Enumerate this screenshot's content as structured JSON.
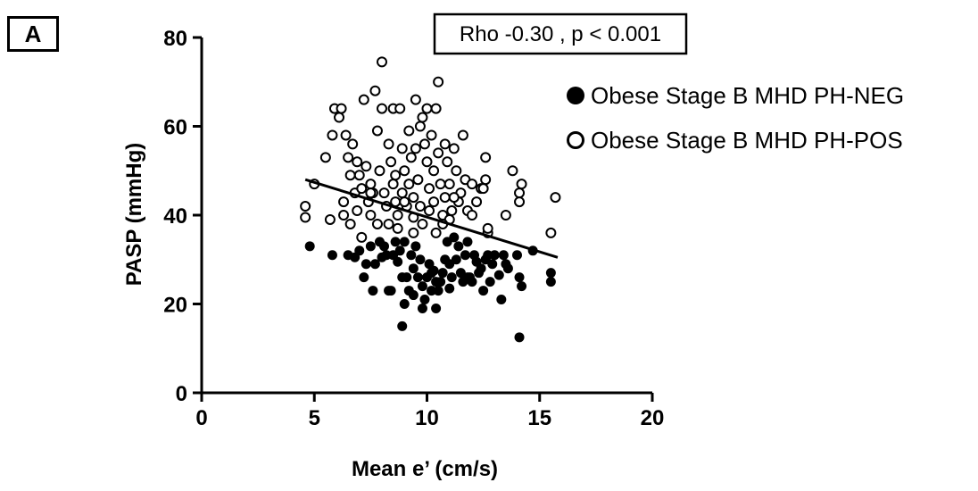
{
  "panel_label": "A",
  "chart_data": {
    "type": "scatter",
    "annotation": "Rho -0.30 , p < 0.001",
    "xlabel": "Mean e’ (cm/s)",
    "ylabel": "PASP (mmHg)",
    "xlim": [
      0,
      20
    ],
    "ylim": [
      0,
      80
    ],
    "xticks": [
      0,
      5,
      10,
      15,
      20
    ],
    "yticks": [
      0,
      20,
      40,
      60,
      80
    ],
    "legend_position": "top-right",
    "regression_line": {
      "x": [
        4.6,
        15.8
      ],
      "y": [
        48.0,
        30.5
      ]
    },
    "series": [
      {
        "name": "Obese Stage B MHD PH-NEG",
        "marker": "filled-circle",
        "color": "#000000",
        "points": [
          [
            4.8,
            33
          ],
          [
            5.8,
            31
          ],
          [
            6.5,
            31
          ],
          [
            6.8,
            30.5
          ],
          [
            7.0,
            32
          ],
          [
            7.2,
            26
          ],
          [
            7.3,
            29
          ],
          [
            7.5,
            33
          ],
          [
            7.6,
            23
          ],
          [
            7.7,
            29
          ],
          [
            7.9,
            34
          ],
          [
            8.0,
            30.5
          ],
          [
            8.1,
            33
          ],
          [
            8.2,
            31
          ],
          [
            8.3,
            23
          ],
          [
            8.4,
            23
          ],
          [
            8.5,
            31
          ],
          [
            8.6,
            34
          ],
          [
            8.7,
            29.5
          ],
          [
            8.8,
            32
          ],
          [
            8.9,
            26
          ],
          [
            8.9,
            15
          ],
          [
            9.0,
            34
          ],
          [
            9.0,
            20
          ],
          [
            9.1,
            26
          ],
          [
            9.2,
            23
          ],
          [
            9.3,
            31
          ],
          [
            9.4,
            28
          ],
          [
            9.4,
            22
          ],
          [
            9.5,
            33
          ],
          [
            9.6,
            26
          ],
          [
            9.7,
            30
          ],
          [
            9.8,
            24
          ],
          [
            9.8,
            19
          ],
          [
            9.9,
            21
          ],
          [
            10.0,
            26
          ],
          [
            10.1,
            29
          ],
          [
            10.2,
            27
          ],
          [
            10.2,
            23
          ],
          [
            10.3,
            27.5
          ],
          [
            10.4,
            25
          ],
          [
            10.4,
            19
          ],
          [
            10.5,
            23
          ],
          [
            10.6,
            25
          ],
          [
            10.7,
            27
          ],
          [
            10.8,
            30
          ],
          [
            10.9,
            34
          ],
          [
            11.0,
            29
          ],
          [
            11.0,
            23.5
          ],
          [
            11.1,
            26
          ],
          [
            11.2,
            35
          ],
          [
            11.3,
            30
          ],
          [
            11.4,
            33
          ],
          [
            11.5,
            27
          ],
          [
            11.6,
            25
          ],
          [
            11.7,
            31
          ],
          [
            11.8,
            34
          ],
          [
            11.8,
            26
          ],
          [
            11.9,
            26
          ],
          [
            12.0,
            25
          ],
          [
            12.1,
            31
          ],
          [
            12.2,
            29.5
          ],
          [
            12.3,
            27
          ],
          [
            12.4,
            28
          ],
          [
            12.5,
            23
          ],
          [
            12.6,
            30
          ],
          [
            12.7,
            31
          ],
          [
            12.8,
            25
          ],
          [
            12.9,
            29
          ],
          [
            13.0,
            31
          ],
          [
            13.2,
            26.5
          ],
          [
            13.3,
            21
          ],
          [
            13.4,
            31
          ],
          [
            13.5,
            29
          ],
          [
            13.6,
            28
          ],
          [
            14.0,
            31
          ],
          [
            14.1,
            26
          ],
          [
            14.1,
            12.5
          ],
          [
            14.2,
            24
          ],
          [
            14.7,
            32
          ],
          [
            15.5,
            27
          ],
          [
            15.5,
            25
          ]
        ]
      },
      {
        "name": "Obese Stage B MHD PH-POS",
        "marker": "open-circle",
        "color": "#000000",
        "points": [
          [
            4.6,
            42
          ],
          [
            4.6,
            39.5
          ],
          [
            5.0,
            47
          ],
          [
            5.5,
            53
          ],
          [
            5.7,
            39
          ],
          [
            5.8,
            58
          ],
          [
            5.9,
            64
          ],
          [
            6.1,
            62
          ],
          [
            6.2,
            64
          ],
          [
            6.3,
            43
          ],
          [
            6.3,
            40
          ],
          [
            6.4,
            58
          ],
          [
            6.5,
            53
          ],
          [
            6.6,
            49
          ],
          [
            6.6,
            38
          ],
          [
            6.7,
            56
          ],
          [
            6.8,
            45
          ],
          [
            6.9,
            41
          ],
          [
            7.0,
            49
          ],
          [
            7.1,
            46
          ],
          [
            7.1,
            35
          ],
          [
            7.2,
            66
          ],
          [
            7.3,
            51
          ],
          [
            7.4,
            43
          ],
          [
            7.5,
            47
          ],
          [
            7.5,
            40
          ],
          [
            7.6,
            45
          ],
          [
            7.7,
            68
          ],
          [
            7.8,
            59
          ],
          [
            7.8,
            38
          ],
          [
            7.9,
            50
          ],
          [
            8.0,
            74.5
          ],
          [
            8.0,
            64
          ],
          [
            8.1,
            45
          ],
          [
            8.2,
            42
          ],
          [
            8.3,
            56
          ],
          [
            8.4,
            52
          ],
          [
            8.5,
            64
          ],
          [
            8.5,
            47
          ],
          [
            8.6,
            49
          ],
          [
            8.7,
            40
          ],
          [
            8.7,
            37
          ],
          [
            8.8,
            64
          ],
          [
            8.9,
            55
          ],
          [
            8.9,
            45
          ],
          [
            9.0,
            50
          ],
          [
            9.1,
            42
          ],
          [
            9.2,
            59
          ],
          [
            9.2,
            47
          ],
          [
            9.3,
            53
          ],
          [
            9.4,
            44
          ],
          [
            9.4,
            39.5
          ],
          [
            9.5,
            66
          ],
          [
            9.5,
            55
          ],
          [
            9.6,
            48
          ],
          [
            9.7,
            60
          ],
          [
            9.7,
            42
          ],
          [
            9.8,
            62
          ],
          [
            9.8,
            38
          ],
          [
            9.9,
            56
          ],
          [
            10.0,
            64
          ],
          [
            10.0,
            52
          ],
          [
            10.1,
            46
          ],
          [
            10.1,
            41
          ],
          [
            10.2,
            58
          ],
          [
            10.3,
            50
          ],
          [
            10.3,
            43
          ],
          [
            10.4,
            64
          ],
          [
            10.4,
            36
          ],
          [
            10.5,
            70
          ],
          [
            10.5,
            54
          ],
          [
            10.6,
            47
          ],
          [
            10.7,
            40
          ],
          [
            10.8,
            56
          ],
          [
            10.8,
            44
          ],
          [
            10.9,
            52
          ],
          [
            11.0,
            47
          ],
          [
            11.0,
            39
          ],
          [
            11.1,
            41
          ],
          [
            11.2,
            55
          ],
          [
            11.3,
            50
          ],
          [
            11.4,
            43
          ],
          [
            11.5,
            45
          ],
          [
            11.6,
            58
          ],
          [
            11.7,
            48
          ],
          [
            11.8,
            41
          ],
          [
            12.0,
            47
          ],
          [
            12.2,
            43
          ],
          [
            12.4,
            46
          ],
          [
            12.5,
            46
          ],
          [
            12.6,
            48
          ],
          [
            12.6,
            53
          ],
          [
            12.7,
            36
          ],
          [
            12.7,
            37
          ],
          [
            13.5,
            40
          ],
          [
            13.8,
            50
          ],
          [
            14.1,
            45
          ],
          [
            14.1,
            43
          ],
          [
            14.2,
            47
          ],
          [
            15.5,
            36
          ],
          [
            15.7,
            44
          ],
          [
            8.6,
            43
          ],
          [
            9.0,
            43
          ],
          [
            6.9,
            52
          ],
          [
            7.5,
            45
          ],
          [
            11.2,
            44
          ],
          [
            9.4,
            36
          ],
          [
            10.7,
            38
          ],
          [
            12.0,
            40
          ],
          [
            8.3,
            38
          ]
        ]
      }
    ]
  }
}
